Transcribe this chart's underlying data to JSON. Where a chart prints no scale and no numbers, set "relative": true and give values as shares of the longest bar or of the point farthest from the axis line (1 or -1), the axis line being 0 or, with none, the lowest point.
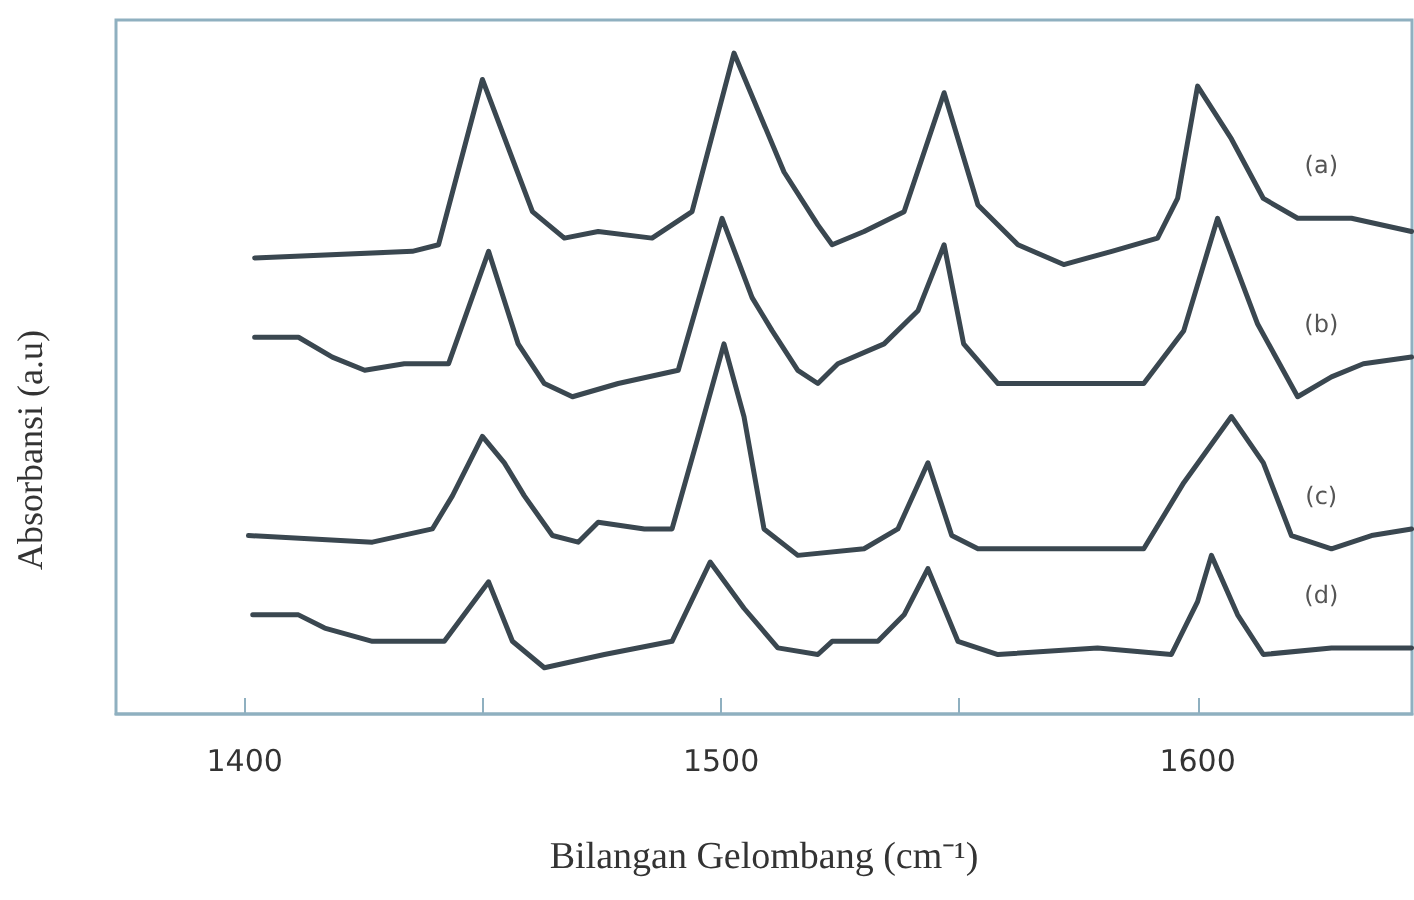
{
  "chart_data": {
    "type": "line",
    "relative": true,
    "xlabel": "Bilangan Gelombang (cm⁻¹)",
    "ylabel": "Absorbansi (a.u)",
    "xlim": [
      1373,
      1645
    ],
    "xticks": [
      1400,
      {
        "value": 1450,
        "label": null
      },
      1500,
      {
        "value": 1550,
        "label": null
      },
      1600
    ],
    "tick_labels": "x",
    "grid": false,
    "marker": "none",
    "line_style": "solid",
    "series": [
      {
        "name": "(a)",
        "color": "#3a4750",
        "x": [
          1402.1,
          1435.2,
          1440.7,
          1449.9,
          1460.4,
          1467.1,
          1474.2,
          1485.5,
          1493.9,
          1502.7,
          1513.2,
          1520.3,
          1523.3,
          1530,
          1538.4,
          1546.8,
          1553.9,
          1562.3,
          1571.9,
          1582,
          1591.6,
          1595.8,
          1600,
          1607.1,
          1613.8,
          1621,
          1632.3,
          1644.9
        ],
        "values": [
          0.69,
          0.7,
          0.71,
          0.96,
          0.76,
          0.72,
          0.73,
          0.72,
          0.76,
          1.0,
          0.82,
          0.74,
          0.71,
          0.73,
          0.76,
          0.94,
          0.77,
          0.71,
          0.68,
          0.7,
          0.72,
          0.78,
          0.95,
          0.87,
          0.78,
          0.75,
          0.75,
          0.73
        ]
      },
      {
        "name": "(b)",
        "color": "#3a4750",
        "x": [
          1402.1,
          1411.3,
          1418.4,
          1425.2,
          1433.5,
          1442.8,
          1451.2,
          1457.4,
          1462.9,
          1468.8,
          1478.4,
          1491,
          1500.2,
          1506.5,
          1510.7,
          1516.1,
          1520.3,
          1524.5,
          1534.2,
          1541.3,
          1546.8,
          1550.9,
          1558.1,
          1571.9,
          1588.7,
          1597.1,
          1604.2,
          1612.6,
          1621,
          1628.1,
          1634.8,
          1644.9
        ],
        "values": [
          0.57,
          0.57,
          0.54,
          0.52,
          0.53,
          0.53,
          0.7,
          0.56,
          0.5,
          0.48,
          0.5,
          0.52,
          0.75,
          0.63,
          0.58,
          0.52,
          0.5,
          0.53,
          0.56,
          0.61,
          0.71,
          0.56,
          0.5,
          0.5,
          0.5,
          0.58,
          0.75,
          0.59,
          0.48,
          0.51,
          0.53,
          0.54
        ]
      },
      {
        "name": "(c)",
        "color": "#3a4750",
        "x": [
          1400.8,
          1426.8,
          1439.4,
          1443.6,
          1449.9,
          1454.5,
          1458.7,
          1464.6,
          1470,
          1474.2,
          1483.9,
          1489.7,
          1495.2,
          1500.6,
          1504.8,
          1509,
          1516.1,
          1530,
          1537.1,
          1543.4,
          1548.4,
          1553.9,
          1571.9,
          1588.7,
          1597.1,
          1607.1,
          1613.8,
          1619.7,
          1628.1,
          1636.5,
          1644.9
        ],
        "values": [
          0.27,
          0.26,
          0.28,
          0.33,
          0.42,
          0.38,
          0.33,
          0.27,
          0.26,
          0.29,
          0.28,
          0.28,
          0.42,
          0.56,
          0.45,
          0.28,
          0.24,
          0.25,
          0.28,
          0.38,
          0.27,
          0.25,
          0.25,
          0.25,
          0.35,
          0.45,
          0.38,
          0.27,
          0.25,
          0.27,
          0.28
        ]
      },
      {
        "name": "(d)",
        "color": "#3a4750",
        "x": [
          1401.7,
          1411.3,
          1416.8,
          1426.8,
          1441.9,
          1451.2,
          1456.2,
          1462.9,
          1475.5,
          1489.7,
          1497.7,
          1504.8,
          1511.9,
          1520.3,
          1523.3,
          1532.9,
          1538.4,
          1543.4,
          1549.7,
          1558.1,
          1579,
          1594.5,
          1600,
          1602.9,
          1608.4,
          1613.8,
          1628.1,
          1644.9
        ],
        "values": [
          0.15,
          0.15,
          0.13,
          0.11,
          0.11,
          0.2,
          0.11,
          0.07,
          0.09,
          0.11,
          0.23,
          0.16,
          0.1,
          0.09,
          0.11,
          0.11,
          0.15,
          0.22,
          0.11,
          0.09,
          0.1,
          0.09,
          0.17,
          0.24,
          0.15,
          0.09,
          0.1,
          0.1
        ]
      }
    ]
  }
}
